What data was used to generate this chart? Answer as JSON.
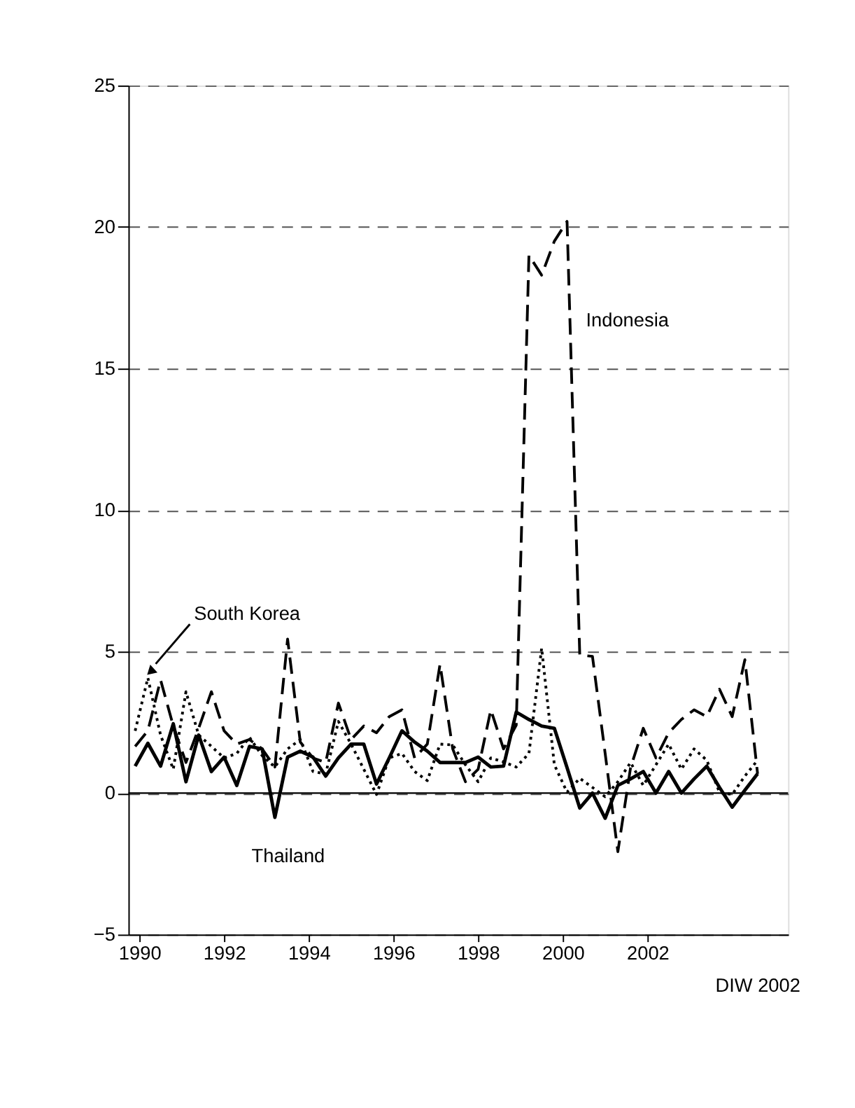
{
  "chart_data": {
    "type": "line",
    "x": [
      1989.9,
      1990.2,
      1990.5,
      1990.8,
      1991.1,
      1991.4,
      1991.7,
      1992.0,
      1992.3,
      1992.6,
      1992.9,
      1993.2,
      1993.5,
      1993.8,
      1994.1,
      1994.4,
      1994.7,
      1995.0,
      1995.3,
      1995.6,
      1995.9,
      1996.2,
      1996.5,
      1996.8,
      1997.1,
      1997.4,
      1997.7,
      1998.0,
      1998.3,
      1998.6,
      1998.9,
      1999.2,
      1999.5,
      1999.8,
      2000.1,
      2000.4,
      2000.7,
      2001.0,
      2001.3,
      2001.6,
      2001.9,
      2002.2,
      2002.5,
      2002.8,
      2003.1,
      2003.4,
      2003.7,
      2004.0,
      2004.3,
      2004.6
    ],
    "series": [
      {
        "name": "Indonesia",
        "color": "#000000",
        "line_style": "dashed",
        "values": [
          1.65,
          2.2,
          4.0,
          2.37,
          1.08,
          2.29,
          3.58,
          2.2,
          1.73,
          1.89,
          1.56,
          0.92,
          5.44,
          1.8,
          1.24,
          1.08,
          3.18,
          1.89,
          2.37,
          2.13,
          2.7,
          2.94,
          1.24,
          1.73,
          4.55,
          1.56,
          0.4,
          0.84,
          2.94,
          1.56,
          2.4,
          19.0,
          18.3,
          19.5,
          20.2,
          4.88,
          4.83,
          1.4,
          -2.07,
          0.9,
          2.29,
          1.24,
          2.13,
          2.6,
          2.94,
          2.7,
          3.67,
          2.7,
          4.71,
          0.68
        ]
      },
      {
        "name": "South Korea",
        "color": "#000000",
        "line_style": "dotted",
        "values": [
          2.2,
          4.07,
          2.05,
          0.84,
          3.58,
          2.05,
          1.65,
          1.24,
          1.4,
          1.97,
          1.32,
          0.92,
          1.56,
          1.89,
          0.76,
          0.68,
          2.53,
          1.73,
          0.84,
          -0.05,
          1.24,
          1.4,
          0.76,
          0.44,
          1.73,
          1.7,
          1.0,
          0.4,
          1.24,
          1.1,
          0.92,
          1.4,
          5.12,
          1.0,
          0.03,
          0.52,
          0.2,
          -0.13,
          0.4,
          1.08,
          0.27,
          1.0,
          1.73,
          0.84,
          1.56,
          1.16,
          0.03,
          -0.05,
          0.6,
          1.16
        ]
      },
      {
        "name": "Thailand",
        "color": "#000000",
        "line_style": "solid",
        "values": [
          0.95,
          1.76,
          0.95,
          2.45,
          0.4,
          2.05,
          0.76,
          1.27,
          0.27,
          1.65,
          1.56,
          -0.86,
          1.27,
          1.48,
          1.27,
          0.6,
          1.24,
          1.73,
          1.73,
          0.32,
          1.24,
          2.2,
          1.8,
          1.48,
          1.08,
          1.08,
          1.08,
          1.27,
          0.92,
          0.95,
          2.86,
          2.6,
          2.37,
          2.29,
          0.9,
          -0.53,
          0,
          -0.89,
          0.27,
          0.5,
          0.76,
          0,
          0.76,
          0,
          0.5,
          0.95,
          0.2,
          -0.5,
          0.1,
          0.68
        ]
      }
    ],
    "xlim": [
      1989.74,
      2005.32
    ],
    "xticks": [
      1990,
      1992,
      1994,
      1996,
      1998,
      2000,
      2002
    ],
    "ylim": [
      -5,
      25
    ],
    "yticks": [
      -5,
      0,
      5,
      10,
      15,
      20,
      25
    ],
    "grid": "y",
    "legend": false,
    "ref_lines": [
      {
        "axis": "y",
        "value": 0
      }
    ],
    "annotations": [
      "DIW 2002"
    ]
  }
}
